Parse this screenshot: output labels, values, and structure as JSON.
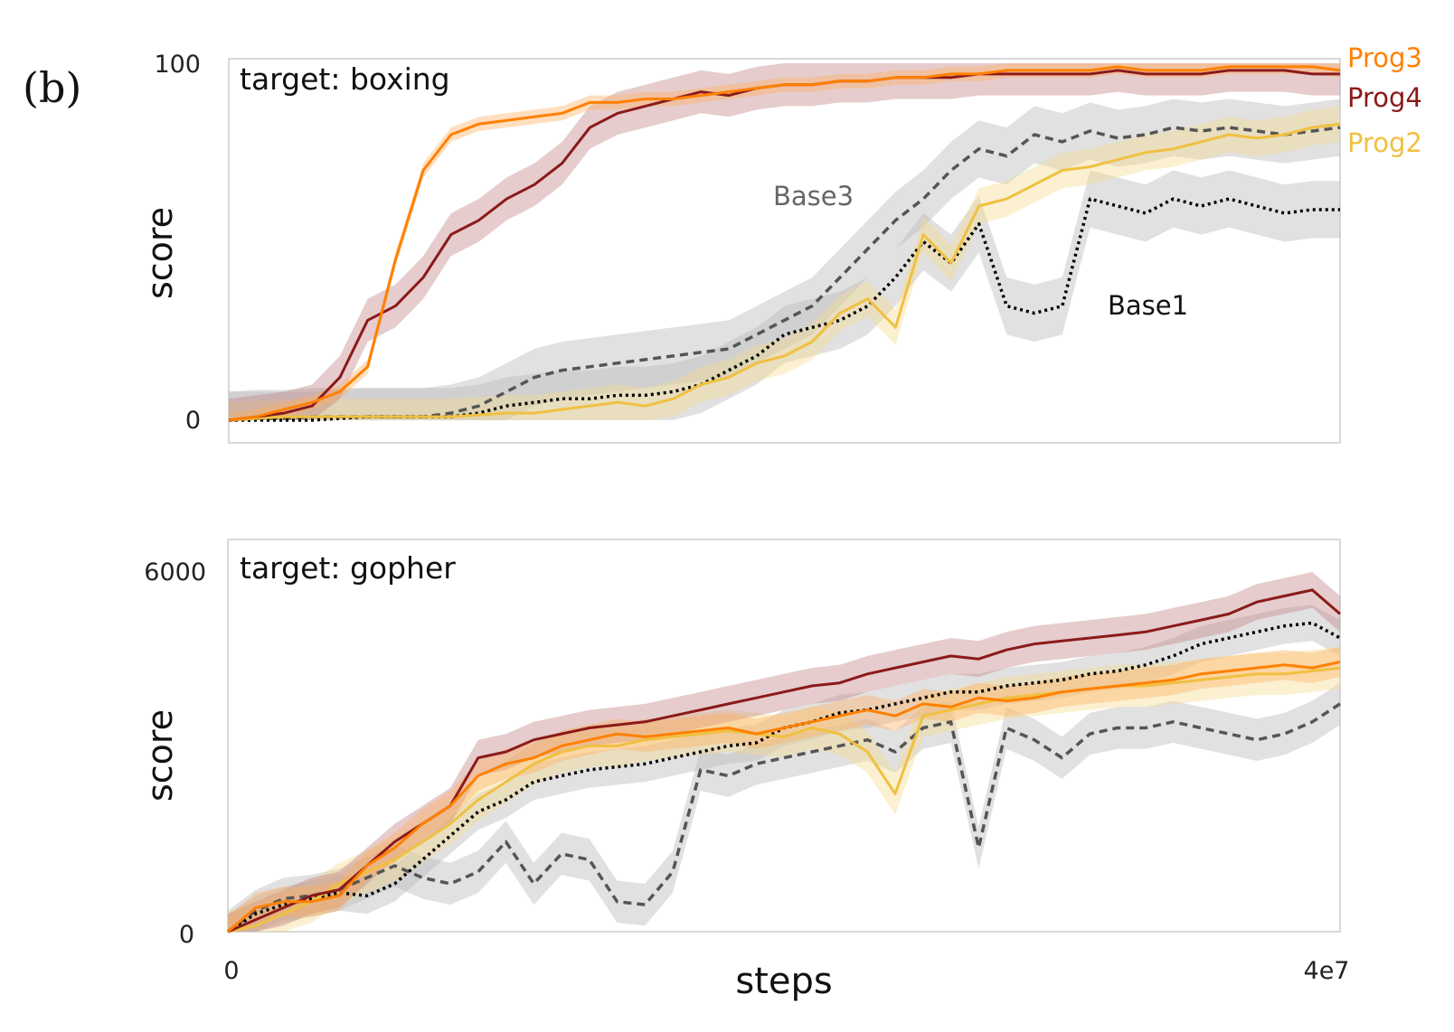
{
  "panel_label": "(b)",
  "x_axis": {
    "label": "steps",
    "tick_start": "0",
    "tick_end": "4e7"
  },
  "colors": {
    "Prog3": "#ff8000",
    "Prog4": "#8b1a1a",
    "Prog2": "#f0c040",
    "Base3": "#555555",
    "Base1": "#000000",
    "band_Prog3": "#ffb060",
    "band_Prog4": "#c08080",
    "band_Prog2": "#f5d98a",
    "band_Base": "#bdbdbd"
  },
  "chart_data": [
    {
      "type": "line",
      "title": "target: boxing",
      "xlabel": "steps",
      "ylabel": "score",
      "xlim": [
        0,
        40000000
      ],
      "ylim": [
        0,
        100
      ],
      "y_ticks": [
        "0",
        "100"
      ],
      "legend": [
        "Prog3",
        "Prog4",
        "Prog2"
      ],
      "legend_placement": "right",
      "annotations": [
        "Base3",
        "Base1"
      ],
      "x": [
        0,
        1000000,
        2000000,
        3000000,
        4000000,
        5000000,
        6000000,
        7000000,
        8000000,
        9000000,
        10000000,
        11000000,
        12000000,
        13000000,
        14000000,
        15000000,
        16000000,
        17000000,
        18000000,
        19000000,
        20000000,
        21000000,
        22000000,
        23000000,
        24000000,
        25000000,
        26000000,
        27000000,
        28000000,
        29000000,
        30000000,
        31000000,
        32000000,
        33000000,
        34000000,
        35000000,
        36000000,
        37000000,
        38000000,
        39000000,
        40000000
      ],
      "series": [
        {
          "name": "Prog3",
          "style": "solid",
          "band": 2,
          "values": [
            0,
            1,
            3,
            5,
            8,
            15,
            45,
            70,
            80,
            83,
            84,
            85,
            86,
            89,
            89,
            90,
            90,
            91,
            92,
            93,
            94,
            94,
            95,
            95,
            96,
            96,
            97,
            97,
            98,
            98,
            98,
            98,
            99,
            98,
            98,
            98,
            99,
            99,
            99,
            99,
            98
          ]
        },
        {
          "name": "Prog4",
          "style": "solid",
          "band": 6,
          "values": [
            0,
            1,
            2,
            4,
            12,
            28,
            32,
            40,
            52,
            56,
            62,
            66,
            72,
            82,
            86,
            88,
            90,
            92,
            91,
            93,
            94,
            94,
            95,
            95,
            96,
            96,
            96,
            97,
            97,
            97,
            97,
            97,
            98,
            97,
            97,
            97,
            98,
            98,
            98,
            97,
            97
          ]
        },
        {
          "name": "Prog2",
          "style": "solid",
          "band": 5,
          "values": [
            0,
            0.5,
            1,
            1,
            1,
            1,
            1,
            1,
            1,
            1.5,
            2,
            2,
            3,
            4,
            5,
            4,
            6,
            10,
            12,
            16,
            18,
            22,
            30,
            34,
            26,
            52,
            44,
            60,
            62,
            66,
            70,
            71,
            73,
            75,
            76,
            78,
            80,
            79,
            80,
            82,
            83
          ]
        },
        {
          "name": "Base3",
          "style": "dashed",
          "band": 8,
          "values": [
            0,
            0.5,
            0.5,
            1,
            1,
            1,
            1,
            1,
            2,
            4,
            8,
            12,
            14,
            15,
            16,
            17,
            18,
            19,
            20,
            24,
            28,
            32,
            40,
            48,
            56,
            62,
            70,
            76,
            74,
            80,
            78,
            81,
            79,
            80,
            82,
            81,
            82,
            81,
            80,
            81,
            82
          ]
        },
        {
          "name": "Base1",
          "style": "dotted",
          "band": 8,
          "values": [
            0,
            0,
            0,
            0,
            0.5,
            1,
            1,
            1,
            1,
            2,
            4,
            5,
            6,
            6,
            7,
            7,
            8,
            10,
            14,
            18,
            24,
            26,
            28,
            32,
            40,
            50,
            44,
            55,
            32,
            30,
            32,
            62,
            60,
            58,
            62,
            60,
            62,
            60,
            58,
            59,
            59
          ]
        }
      ]
    },
    {
      "type": "line",
      "title": "target: gopher",
      "xlabel": "steps",
      "ylabel": "score",
      "xlim": [
        0,
        40000000
      ],
      "ylim": [
        0,
        6000
      ],
      "y_ticks": [
        "0",
        "6000"
      ],
      "x": [
        0,
        1000000,
        2000000,
        3000000,
        4000000,
        5000000,
        6000000,
        7000000,
        8000000,
        9000000,
        10000000,
        11000000,
        12000000,
        13000000,
        14000000,
        15000000,
        16000000,
        17000000,
        18000000,
        19000000,
        20000000,
        21000000,
        22000000,
        23000000,
        24000000,
        25000000,
        26000000,
        27000000,
        28000000,
        29000000,
        30000000,
        31000000,
        32000000,
        33000000,
        34000000,
        35000000,
        36000000,
        37000000,
        38000000,
        39000000,
        40000000
      ],
      "series": [
        {
          "name": "Prog3",
          "style": "solid",
          "band": 250,
          "values": [
            0,
            400,
            500,
            500,
            600,
            1100,
            1400,
            1800,
            2100,
            2600,
            2800,
            2900,
            3100,
            3200,
            3300,
            3250,
            3300,
            3350,
            3400,
            3300,
            3400,
            3500,
            3600,
            3700,
            3600,
            3800,
            3750,
            3900,
            3850,
            3900,
            4000,
            4050,
            4100,
            4150,
            4200,
            4300,
            4350,
            4400,
            4450,
            4400,
            4500
          ]
        },
        {
          "name": "Prog4",
          "style": "solid",
          "band": 300,
          "values": [
            0,
            200,
            400,
            600,
            700,
            1100,
            1500,
            1800,
            2100,
            2900,
            3000,
            3200,
            3300,
            3400,
            3450,
            3500,
            3600,
            3700,
            3800,
            3900,
            4000,
            4100,
            4150,
            4300,
            4400,
            4500,
            4600,
            4550,
            4700,
            4800,
            4850,
            4900,
            4950,
            5000,
            5100,
            5200,
            5300,
            5500,
            5600,
            5700,
            5300
          ]
        },
        {
          "name": "Prog2",
          "style": "solid",
          "band": 350,
          "values": [
            0,
            100,
            300,
            500,
            800,
            1000,
            1200,
            1500,
            1800,
            2200,
            2500,
            2800,
            3000,
            3100,
            3100,
            3200,
            3250,
            3300,
            3350,
            3300,
            3250,
            3400,
            3300,
            3000,
            2300,
            3600,
            3700,
            3800,
            3900,
            3950,
            4000,
            4050,
            4100,
            4100,
            4150,
            4200,
            4250,
            4300,
            4300,
            4350,
            4400
          ]
        },
        {
          "name": "Base3",
          "style": "dashed",
          "band": 350,
          "values": [
            0,
            350,
            550,
            600,
            700,
            900,
            1100,
            900,
            800,
            1000,
            1500,
            800,
            1300,
            1200,
            500,
            450,
            1000,
            2700,
            2600,
            2800,
            2900,
            3000,
            3100,
            3200,
            3000,
            3400,
            3500,
            1400,
            3400,
            3200,
            2900,
            3300,
            3400,
            3400,
            3500,
            3400,
            3300,
            3200,
            3300,
            3500,
            3800
          ]
        },
        {
          "name": "Base1",
          "style": "dotted",
          "band": 300,
          "values": [
            0,
            300,
            450,
            550,
            650,
            600,
            800,
            1200,
            1600,
            2000,
            2200,
            2500,
            2600,
            2700,
            2750,
            2800,
            2900,
            3000,
            3100,
            3150,
            3400,
            3500,
            3650,
            3700,
            3800,
            3900,
            4000,
            4000,
            4100,
            4150,
            4200,
            4300,
            4350,
            4450,
            4600,
            4800,
            4900,
            5000,
            5100,
            5150,
            4900
          ]
        }
      ]
    }
  ]
}
